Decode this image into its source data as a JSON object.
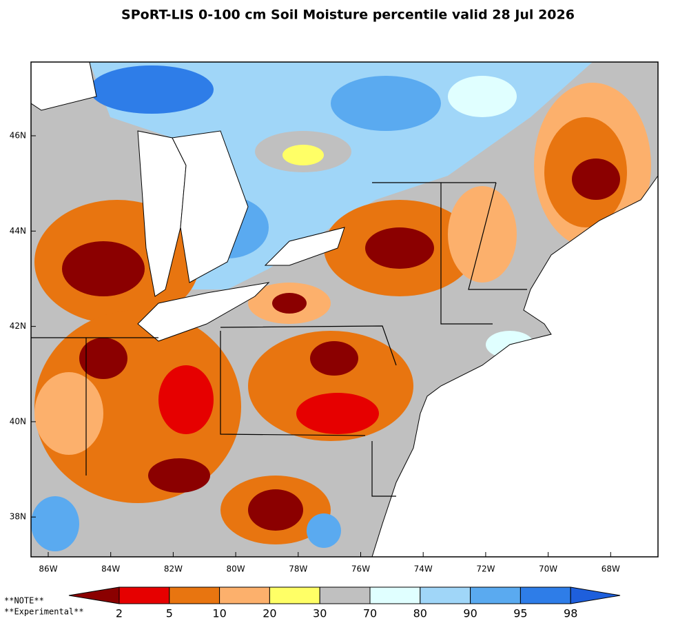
{
  "title": "SPoRT-LIS 0-100 cm Soil Moisture percentile valid 28 Jul 2026",
  "map": {
    "lat_labels": [
      "46N",
      "44N",
      "42N",
      "40N",
      "38N"
    ],
    "lon_labels": [
      "86W",
      "84W",
      "82W",
      "80W",
      "78W",
      "76W",
      "74W",
      "72W",
      "70W",
      "68W"
    ]
  },
  "colorbar": {
    "colors": [
      "#8b0000",
      "#e60000",
      "#e87510",
      "#fcb06c",
      "#ffff66",
      "#c0c0c0",
      "#e0ffff",
      "#a0d6f8",
      "#5aaaf0",
      "#2e7de8",
      "#1e5fdc"
    ],
    "labels": [
      2,
      5,
      10,
      20,
      30,
      70,
      80,
      90,
      95,
      98
    ]
  },
  "notes": [
    "**NOTE**",
    "**Experimental**"
  ]
}
